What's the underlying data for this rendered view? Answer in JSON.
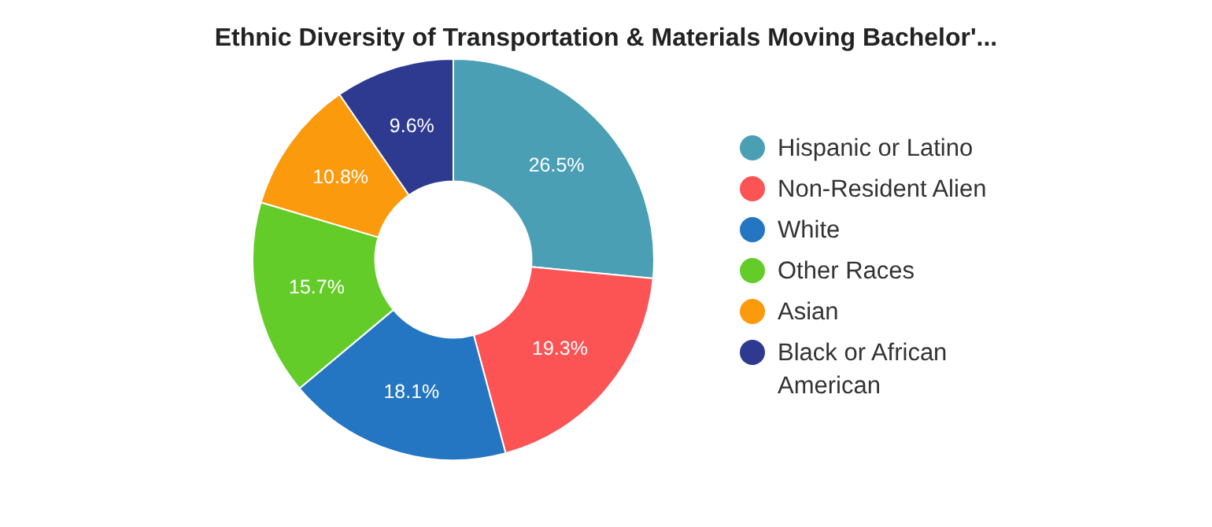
{
  "chart_data": {
    "type": "donut",
    "title": "Ethnic Diversity of Transportation & Materials Moving Bachelor'...",
    "categories": [
      "Hispanic or Latino",
      "Non-Resident Alien",
      "White",
      "Other Races",
      "Asian",
      "Black or African American"
    ],
    "values": [
      26.5,
      19.3,
      18.1,
      15.7,
      10.8,
      9.6
    ],
    "colors": [
      "#4a9fb5",
      "#fc5355",
      "#2475c2",
      "#63cc28",
      "#fb9a0c",
      "#2e3a8f"
    ],
    "value_labels": [
      "26.5%",
      "19.3%",
      "18.1%",
      "15.7%",
      "10.8%",
      "9.6%"
    ],
    "legend": "right"
  }
}
